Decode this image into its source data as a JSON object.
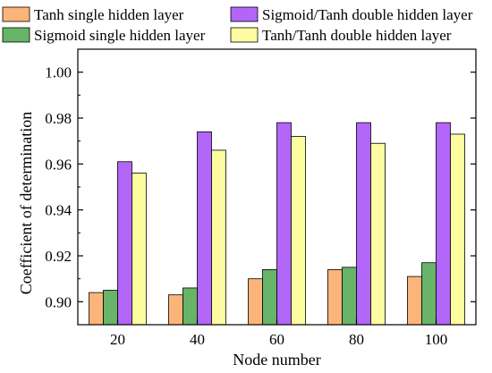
{
  "chart_data": {
    "type": "bar",
    "categories": [
      "20",
      "40",
      "60",
      "80",
      "100"
    ],
    "series": [
      {
        "name": "Tanh single hidden layer",
        "color": "#fbb47a",
        "values": [
          0.904,
          0.903,
          0.91,
          0.914,
          0.911
        ]
      },
      {
        "name": "Sigmoid single hidden layer",
        "color": "#68b468",
        "values": [
          0.905,
          0.906,
          0.914,
          0.915,
          0.917
        ]
      },
      {
        "name": "Sigmoid/Tanh double hidden layer",
        "color": "#b266f8",
        "values": [
          0.961,
          0.974,
          0.978,
          0.978,
          0.978
        ]
      },
      {
        "name": "Tanh/Tanh double hidden layer",
        "color": "#fdfca0",
        "values": [
          0.956,
          0.966,
          0.972,
          0.969,
          0.973
        ]
      }
    ],
    "xlabel": "Node number",
    "ylabel": "Coefficient of determination",
    "ylim": [
      0.89,
      1.01
    ],
    "yticks": [
      "0.90",
      "0.92",
      "0.94",
      "0.96",
      "0.98",
      "1.00"
    ],
    "grid": false,
    "legend": "top, two columns"
  }
}
